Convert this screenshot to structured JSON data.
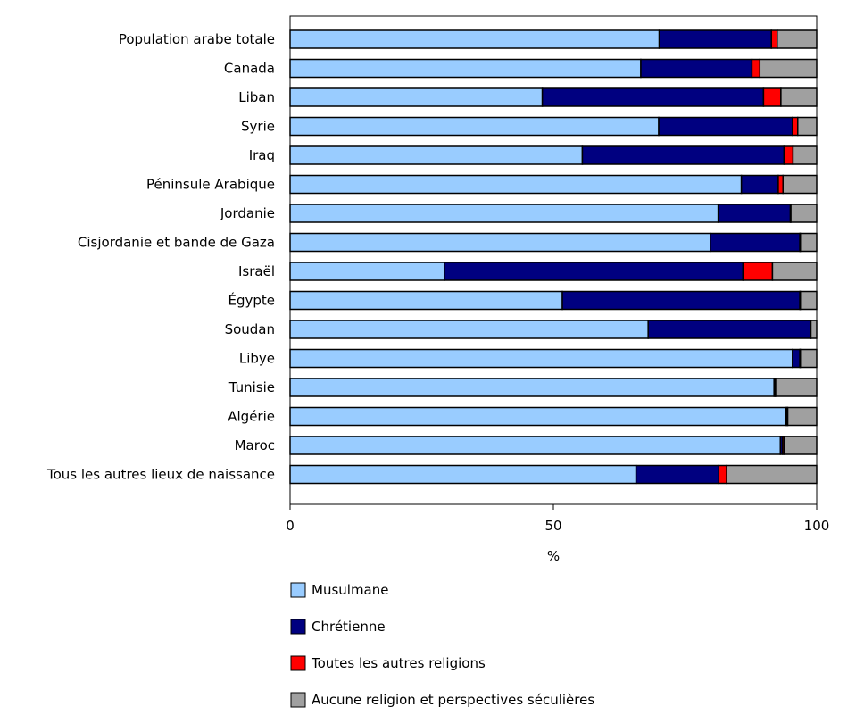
{
  "chart_data": {
    "type": "bar",
    "orientation": "horizontal",
    "stacked": true,
    "categories": [
      "Population arabe totale",
      "Canada",
      "Liban",
      "Syrie",
      "Iraq",
      "Péninsule Arabique",
      "Jordanie",
      "Cisjordanie et bande de Gaza",
      "Israël",
      "Égypte",
      "Soudan",
      "Libye",
      "Tunisie",
      "Algérie",
      "Maroc",
      "Tous les autres lieux de naissance"
    ],
    "series": [
      {
        "name": "Musulmane",
        "color": "#99ccff",
        "values": [
          70.1,
          66.6,
          47.9,
          70.0,
          55.5,
          85.7,
          81.3,
          79.8,
          29.3,
          51.7,
          68.0,
          95.4,
          91.9,
          94.2,
          93.1,
          65.7
        ]
      },
      {
        "name": "Chrétienne",
        "color": "#000080",
        "values": [
          21.3,
          21.1,
          42.0,
          25.4,
          38.3,
          7.0,
          13.7,
          17.0,
          56.7,
          45.1,
          30.8,
          1.4,
          0.2,
          0.2,
          0.4,
          15.7
        ]
      },
      {
        "name": "Toutes les autres religions",
        "color": "#ff0000",
        "values": [
          1.1,
          1.5,
          3.3,
          1.0,
          1.7,
          0.9,
          0.1,
          0.1,
          5.6,
          0.1,
          0.1,
          0.1,
          0.1,
          0.1,
          0.3,
          1.5
        ]
      },
      {
        "name": "Aucune religion et perspectives séculières",
        "color": "#a0a0a0",
        "values": [
          7.5,
          10.8,
          6.8,
          3.6,
          4.5,
          6.4,
          4.9,
          3.1,
          8.4,
          3.1,
          1.1,
          3.1,
          7.8,
          5.5,
          6.2,
          17.1
        ]
      }
    ],
    "xlabel": "%",
    "ylabel": "",
    "xlim": [
      0,
      100
    ],
    "xticks": [
      "0",
      "50",
      "100"
    ],
    "grid": false,
    "legend_position": "bottom"
  }
}
